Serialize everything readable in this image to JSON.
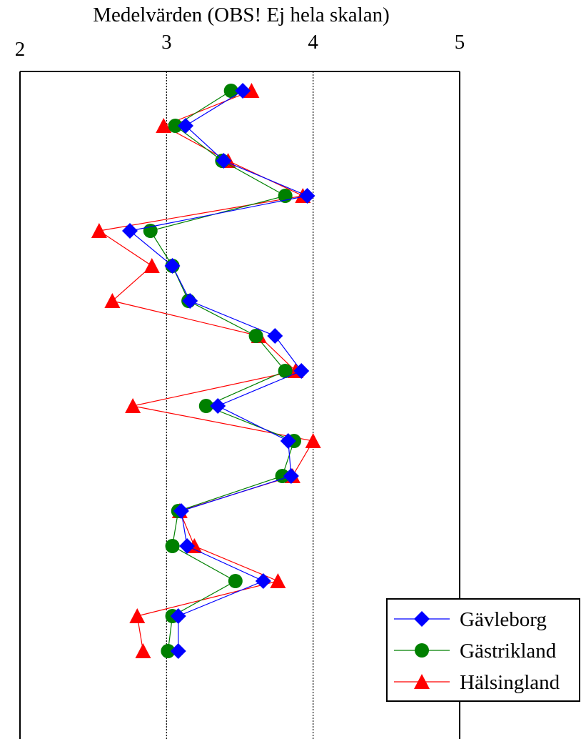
{
  "chart_data": {
    "type": "line",
    "orientation": "horizontal",
    "title": "Medelvärden (OBS! Ej hela skalan)",
    "xlim": [
      2,
      5
    ],
    "x_ticks": [
      "2",
      "3",
      "4",
      "5"
    ],
    "gridlines": "dotted vertical at 3 and 4",
    "legend_position": "bottom-right",
    "series": [
      {
        "name": "Gävleborg",
        "color": "#0000ff",
        "marker": "diamond",
        "values": [
          3.52,
          3.13,
          3.39,
          3.96,
          2.75,
          3.04,
          3.16,
          3.74,
          3.92,
          3.35,
          3.83,
          3.85,
          3.1,
          3.14,
          3.66,
          3.08,
          3.08
        ]
      },
      {
        "name": "Gästrikland",
        "color": "#008000",
        "marker": "circle",
        "values": [
          3.44,
          3.06,
          3.38,
          3.81,
          2.89,
          3.04,
          3.15,
          3.61,
          3.81,
          3.27,
          3.87,
          3.79,
          3.08,
          3.04,
          3.47,
          3.04,
          3.01
        ]
      },
      {
        "name": "Hälsingland",
        "color": "#ff0000",
        "marker": "triangle",
        "values": [
          3.58,
          2.98,
          3.42,
          3.93,
          2.54,
          2.9,
          2.63,
          3.63,
          3.88,
          2.77,
          4.0,
          3.86,
          3.09,
          3.19,
          3.76,
          2.8,
          2.84
        ]
      }
    ]
  }
}
